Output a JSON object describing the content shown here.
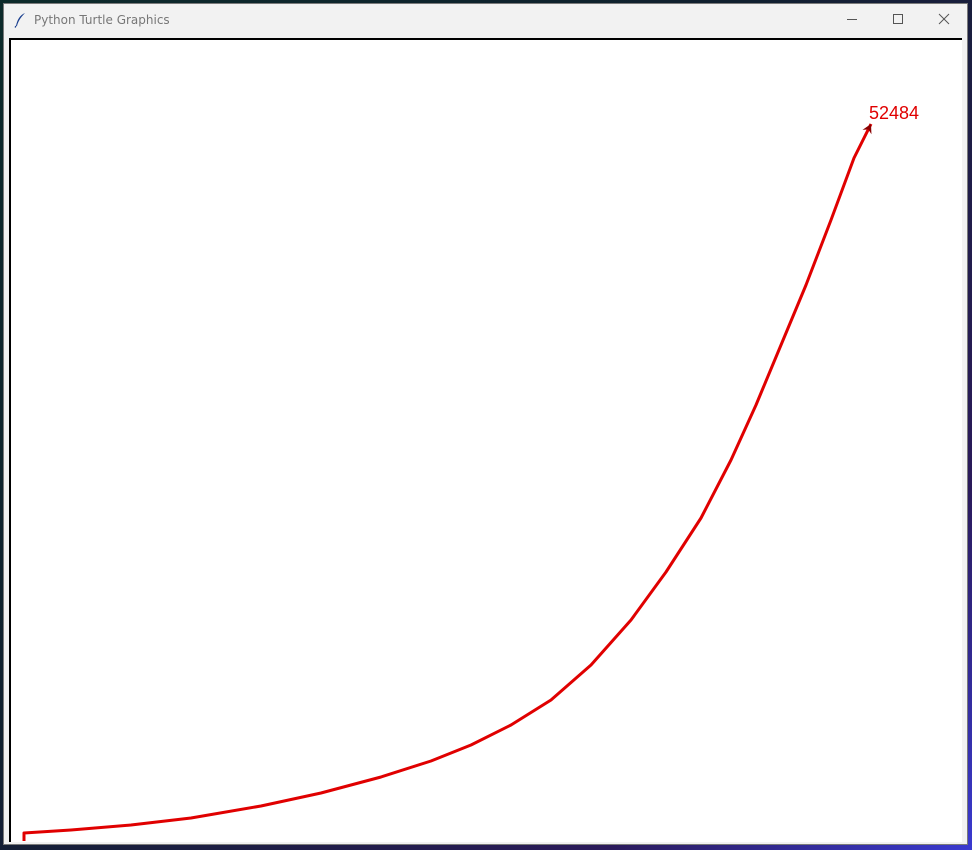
{
  "window": {
    "title": "Python Turtle Graphics"
  },
  "icons": {
    "app": "feather-icon",
    "minimize": "minimize-icon",
    "maximize": "maximize-icon",
    "close": "close-icon"
  },
  "canvas": {
    "label": "52484",
    "pen_color": "#e00000",
    "label_color": "#e00000",
    "turtle_color": "#8b0000",
    "background": "#ffffff"
  }
}
